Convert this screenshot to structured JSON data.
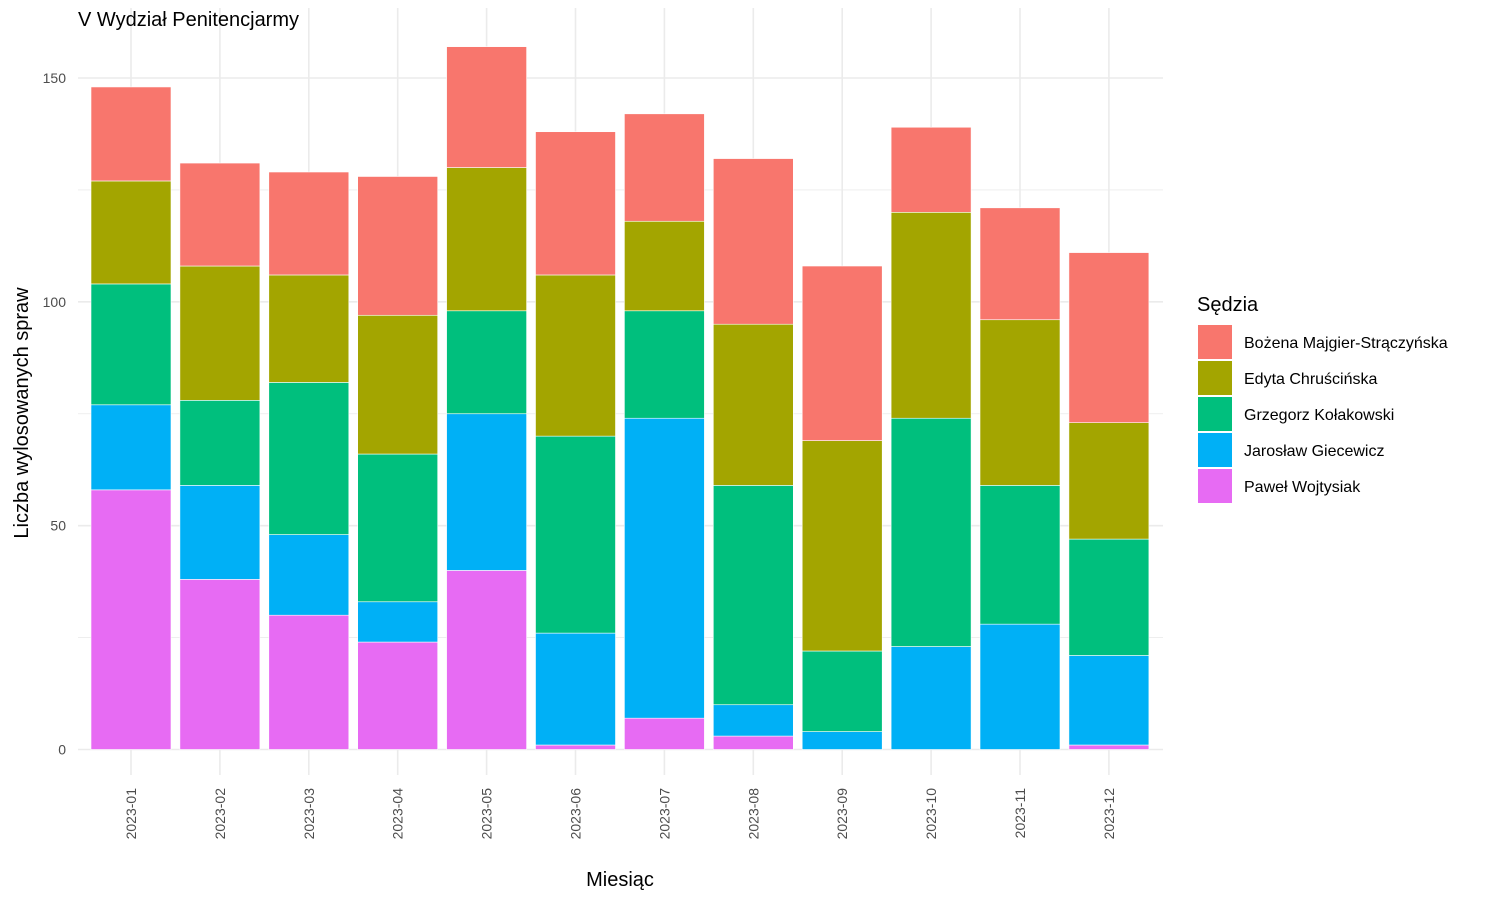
{
  "chart_data": {
    "type": "bar",
    "stacked": true,
    "title": "V Wydział Penitencjarmy",
    "xlabel": "Miesiąc",
    "ylabel": "Liczba wylosowanych spraw",
    "ylim": [
      -6,
      164
    ],
    "y_ticks": [
      0,
      50,
      100,
      150
    ],
    "y_tick_labels": [
      "0",
      "50",
      "100",
      "150"
    ],
    "grid": true,
    "legend_title": "Sędzia",
    "legend_position": "right",
    "categories": [
      "2023-01",
      "2023-02",
      "2023-03",
      "2023-04",
      "2023-05",
      "2023-06",
      "2023-07",
      "2023-08",
      "2023-09",
      "2023-10",
      "2023-11",
      "2023-12"
    ],
    "series": [
      {
        "name": "Paweł Wojtysiak",
        "color": "#E76BF3",
        "values": [
          58,
          38,
          30,
          24,
          40,
          1,
          7,
          3,
          0,
          0,
          0,
          1
        ]
      },
      {
        "name": "Jarosław Giecewicz",
        "color": "#00B0F6",
        "values": [
          19,
          21,
          18,
          9,
          35,
          25,
          67,
          7,
          4,
          23,
          28,
          20
        ]
      },
      {
        "name": "Grzegorz Kołakowski",
        "color": "#00BF7D",
        "values": [
          27,
          19,
          34,
          33,
          23,
          44,
          24,
          49,
          18,
          51,
          31,
          26
        ]
      },
      {
        "name": "Edyta Chruścińska",
        "color": "#A3A500",
        "values": [
          23,
          30,
          24,
          31,
          32,
          36,
          20,
          36,
          47,
          46,
          37,
          26
        ]
      },
      {
        "name": "Bożena Majgier-Strączyńska",
        "color": "#F8766D",
        "values": [
          21,
          23,
          23,
          31,
          27,
          32,
          24,
          37,
          39,
          19,
          25,
          38
        ]
      }
    ],
    "legend_order": [
      "Bożena Majgier-Strączyńska",
      "Edyta Chruścińska",
      "Grzegorz Kołakowski",
      "Jarosław Giecewicz",
      "Paweł Wojtysiak"
    ]
  }
}
